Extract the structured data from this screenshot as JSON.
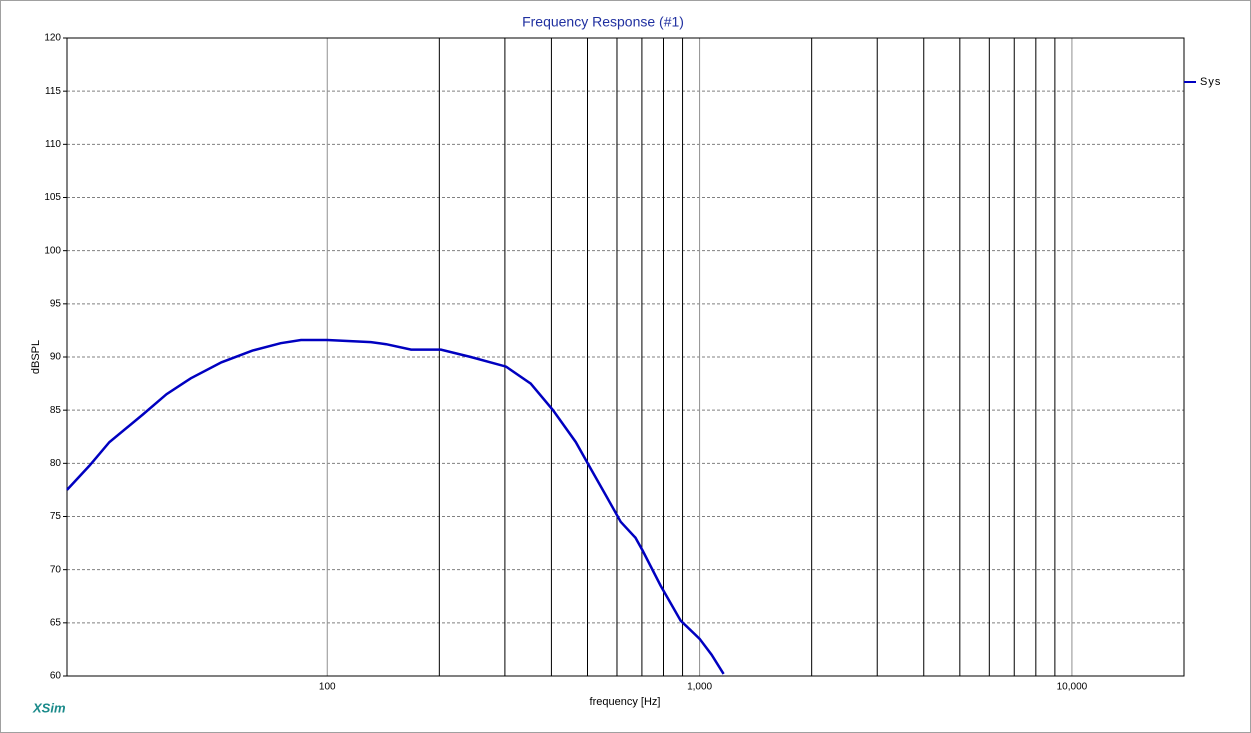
{
  "chart_data": {
    "type": "line",
    "title": "Frequency Response (#1)",
    "x_label": "frequency [Hz]",
    "y_label": "dBSPL",
    "watermark": "XSim",
    "x_scale": "log",
    "x": [
      20,
      23,
      26,
      32,
      37,
      43,
      52,
      63,
      75,
      85,
      100,
      131,
      144,
      168,
      202,
      243,
      302,
      352,
      404,
      465,
      510,
      560,
      614,
      673,
      703,
      786,
      890,
      1000,
      1077,
      1160
    ],
    "series": [
      {
        "name": "Sys",
        "color": "#0000c0",
        "values": [
          77.5,
          79.8,
          82,
          84.6,
          86.5,
          88,
          89.5,
          90.6,
          91.3,
          91.6,
          91.6,
          91.4,
          91.2,
          90.7,
          90.7,
          90,
          89.1,
          87.5,
          85,
          82,
          79.5,
          77,
          74.5,
          73,
          71.8,
          68.5,
          65.2,
          63.5,
          62,
          60.2
        ]
      }
    ],
    "xlim": [
      20,
      20000
    ],
    "xticks": [
      {
        "value": 100,
        "label": "100"
      },
      {
        "value": 1000,
        "label": "1,000"
      },
      {
        "value": 10000,
        "label": "10,000"
      }
    ],
    "x_minor_grid": [
      200,
      300,
      400,
      500,
      600,
      700,
      800,
      900,
      2000,
      3000,
      4000,
      5000,
      6000,
      7000,
      8000,
      9000
    ],
    "ylim": [
      60,
      120
    ],
    "yticks": [
      60,
      65,
      70,
      75,
      80,
      85,
      90,
      95,
      100,
      105,
      110,
      115,
      120
    ],
    "grid": true,
    "legend": "right"
  }
}
